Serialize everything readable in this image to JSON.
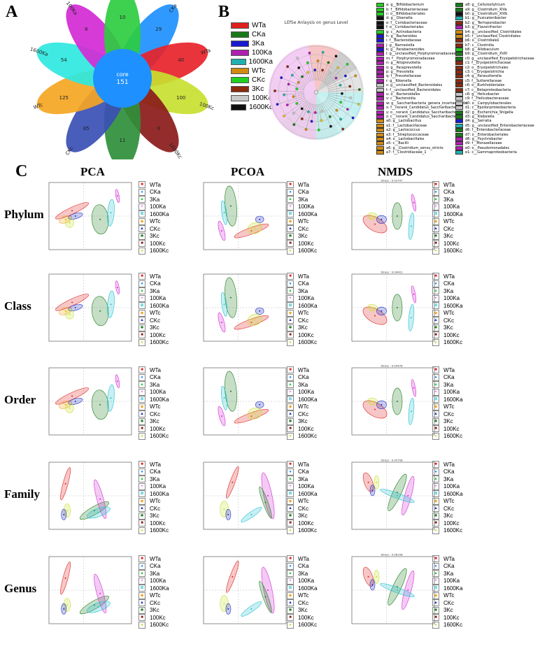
{
  "panels": {
    "a": "A",
    "b": "B",
    "c": "C"
  },
  "venn": {
    "core_label": "core",
    "core_value": "151",
    "petals": [
      {
        "name": "CKa",
        "value": "29",
        "color": "#1e90ff"
      },
      {
        "name": "WTa",
        "value": "40",
        "color": "#e8232a"
      },
      {
        "name": "100Kc",
        "value": "100",
        "color": "#c8e030"
      },
      {
        "name": "1600Kc",
        "value": "9",
        "color": "#8b1a1a"
      },
      {
        "name": "3Kc",
        "value": "11",
        "color": "#2f8f3a"
      },
      {
        "name": "CKc",
        "value": "85",
        "color": "#3a4fb5"
      },
      {
        "name": "WTc",
        "value": "125",
        "color": "#f5a623"
      },
      {
        "name": "1600Ka",
        "value": "54",
        "color": "#2ee8e0"
      },
      {
        "name": "100Ka",
        "value": "8",
        "color": "#d42ad4"
      },
      {
        "name": "3Ka",
        "value": "10",
        "color": "#2ecc40"
      }
    ]
  },
  "legendB": {
    "items": [
      {
        "name": "WTa",
        "color": "#e02020"
      },
      {
        "name": "CKa",
        "color": "#1a7a1a"
      },
      {
        "name": "3Ka",
        "color": "#1a1ad0"
      },
      {
        "name": "100Ka",
        "color": "#b020b0"
      },
      {
        "name": "1600Ka",
        "color": "#20b0b0"
      },
      {
        "name": "WTc",
        "color": "#d08a10"
      },
      {
        "name": "CKc",
        "color": "#20d020"
      },
      {
        "name": "3Kc",
        "color": "#8b2a10"
      },
      {
        "name": "100Kc",
        "color": "#c8c8c8"
      },
      {
        "name": "1600Kc",
        "color": "#101010"
      }
    ]
  },
  "lefse": {
    "title": "LEfSe Anlaysis on genus Level",
    "col1": [
      {
        "t": "a: g__Bifidobacterium",
        "c": "#20d020"
      },
      {
        "t": "b: f__Bifidobacteriaceae",
        "c": "#20d020"
      },
      {
        "t": "c: o__Bifidobacteriales",
        "c": "#20d020"
      },
      {
        "t": "d: g__Olsenella",
        "c": "#101010"
      },
      {
        "t": "e: f__Coriobacteriaceae",
        "c": "#101010"
      },
      {
        "t": "f: o__Coriobacteriales",
        "c": "#101010"
      },
      {
        "t": "g: c__Actinobacteria",
        "c": "#20d020"
      },
      {
        "t": "h: g__Bacteroides",
        "c": "#1a1ad0"
      },
      {
        "t": "i: f__Bacteroidaceae",
        "c": "#1a1ad0"
      },
      {
        "t": "j: g__Barnesiella",
        "c": "#b020b0"
      },
      {
        "t": "k: g__Parabacteroides",
        "c": "#1a1ad0"
      },
      {
        "t": "l: g__unclassified_Porphyromonadaceae",
        "c": "#b020b0"
      },
      {
        "t": "m: f__Porphyromonadaceae",
        "c": "#b020b0"
      },
      {
        "t": "n: g__Alloprevotella",
        "c": "#b020b0"
      },
      {
        "t": "o: g__Paraprevotella",
        "c": "#b020b0"
      },
      {
        "t": "p: g__Prevotella",
        "c": "#b020b0"
      },
      {
        "t": "q: f__Prevotellaceae",
        "c": "#b020b0"
      },
      {
        "t": "r: g__Rikenella",
        "c": "#b020b0"
      },
      {
        "t": "s: g__unclassified_Bacteroidales",
        "c": "#c8c8c8"
      },
      {
        "t": "t: f__unclassified_Bacteroidales",
        "c": "#c8c8c8"
      },
      {
        "t": "u: o__Bacteroidales",
        "c": "#b020b0"
      },
      {
        "t": "v: c__Bacteroidia",
        "c": "#b020b0"
      },
      {
        "t": "w: g__Saccharibacteria_genera_incertae_sedis",
        "c": "#b020b0"
      },
      {
        "t": "x: f__norank_Candidatus_Saccharibacteria",
        "c": "#b020b0"
      },
      {
        "t": "y: o__norank_Candidatus_Saccharibacteria",
        "c": "#b020b0"
      },
      {
        "t": "z: c__norank_Candidatus_Saccharibacteria",
        "c": "#b020b0"
      },
      {
        "t": "a0: g__Lactobacillus",
        "c": "#d08a10"
      },
      {
        "t": "a1: f__Lactobacillaceae",
        "c": "#d08a10"
      },
      {
        "t": "a2: g__Lactococcus",
        "c": "#d08a10"
      },
      {
        "t": "a3: f__Streptococcaceae",
        "c": "#d08a10"
      },
      {
        "t": "a4: o__Lactobacillales",
        "c": "#d08a10"
      },
      {
        "t": "a5: c__Bacilli",
        "c": "#d08a10"
      },
      {
        "t": "a6: g__Clostridium_sensu_stricto",
        "c": "#d08a10"
      },
      {
        "t": "a7: f__Clostridiaceae_1",
        "c": "#d08a10"
      }
    ],
    "col2": [
      {
        "t": "a8: g__Cellulosilyticum",
        "c": "#1a7a1a"
      },
      {
        "t": "a9: g__Clostridium_XIVa",
        "c": "#1a7a1a"
      },
      {
        "t": "b0: g__Clostridium_XIVb",
        "c": "#101010"
      },
      {
        "t": "b1: g__Fusicatenibacter",
        "c": "#20b0b0"
      },
      {
        "t": "b2: g__Terrisporobacter",
        "c": "#8b2a10"
      },
      {
        "t": "b3: g__Flavonifractor",
        "c": "#b020b0"
      },
      {
        "t": "b4: g__unclassified_Clostridiales",
        "c": "#d08a10"
      },
      {
        "t": "b5: f__unclassified_Clostridiales",
        "c": "#d08a10"
      },
      {
        "t": "b6: o__Clostridiales",
        "c": "#8b2a10"
      },
      {
        "t": "b7: c__Clostridia",
        "c": "#8b2a10"
      },
      {
        "t": "b8: g__Allobaculum",
        "c": "#20d020"
      },
      {
        "t": "b9: g__Clostridium_XVIII",
        "c": "#1a7a1a"
      },
      {
        "t": "c0: g__unclassified_Erysipelotrichaceae",
        "c": "#1a7a1a"
      },
      {
        "t": "c1: f__Erysipelotrichaceae",
        "c": "#8b2a10"
      },
      {
        "t": "c2: o__Erysipelotrichales",
        "c": "#8b2a10"
      },
      {
        "t": "c3: c__Erysipelotrichia",
        "c": "#8b2a10"
      },
      {
        "t": "c4: g__Parasutterella",
        "c": "#8b2a10"
      },
      {
        "t": "c5: f__Sutterellaceae",
        "c": "#8b2a10"
      },
      {
        "t": "c6: o__Burkholderiales",
        "c": "#8b2a10"
      },
      {
        "t": "c7: c__Betaproteobacteria",
        "c": "#8b2a10"
      },
      {
        "t": "c8: g__Helicobacter",
        "c": "#c8c8c8"
      },
      {
        "t": "c9: f__Helicobacteraceae",
        "c": "#c8c8c8"
      },
      {
        "t": "d0: o__Campylobacterales",
        "c": "#c8c8c8"
      },
      {
        "t": "d1: c__Epsilonproteobacteria",
        "c": "#c8c8c8"
      },
      {
        "t": "d2: g__Escherichia_Shigella",
        "c": "#1a7a1a"
      },
      {
        "t": "d3: g__Klebsiella",
        "c": "#1a7a1a"
      },
      {
        "t": "d4: g__Serratia",
        "c": "#1a1ad0"
      },
      {
        "t": "d5: g__unclassified_Enterobacteriaceae",
        "c": "#20b0b0"
      },
      {
        "t": "d6: f__Enterobacteriaceae",
        "c": "#1a7a1a"
      },
      {
        "t": "d7: o__Enterobacteriales",
        "c": "#1a7a1a"
      },
      {
        "t": "d8: g__Psychrobacter",
        "c": "#b020b0"
      },
      {
        "t": "d9: f__Moraxellaceae",
        "c": "#b020b0"
      },
      {
        "t": "e0: o__Pseudomonadales",
        "c": "#b020b0"
      },
      {
        "t": "e1: c__Gammaproteobacteria",
        "c": "#20b0b0"
      }
    ]
  },
  "panelC": {
    "columns": [
      "PCA",
      "PCOA",
      "NMDS"
    ],
    "rows": [
      "Phylum",
      "Class",
      "Order",
      "Family",
      "Genus"
    ],
    "stress": [
      "Stress : 0.02747",
      "Stress : 0.04401",
      "Stress : 0.04478",
      "Stress : 0.05758",
      "Stress : 0.06158"
    ],
    "legend": [
      {
        "name": "WTa",
        "color": "#e02020",
        "sym": "■"
      },
      {
        "name": "CKa",
        "color": "#1e90ff",
        "sym": "●"
      },
      {
        "name": "3Ka",
        "color": "#2ecc40",
        "sym": "▲"
      },
      {
        "name": "100Ka",
        "color": "#d42ad4",
        "sym": "+"
      },
      {
        "name": "1600Ka",
        "color": "#20c0d0",
        "sym": "⊠"
      },
      {
        "name": "WTc",
        "color": "#f5a623",
        "sym": "◆"
      },
      {
        "name": "CKc",
        "color": "#2030c0",
        "sym": "▲"
      },
      {
        "name": "3Kc",
        "color": "#1a7a1a",
        "sym": "✱"
      },
      {
        "name": "100Kc",
        "color": "#8b1a1a",
        "sym": "■"
      },
      {
        "name": "1600Kc",
        "color": "#c8e030",
        "sym": "●"
      }
    ]
  }
}
